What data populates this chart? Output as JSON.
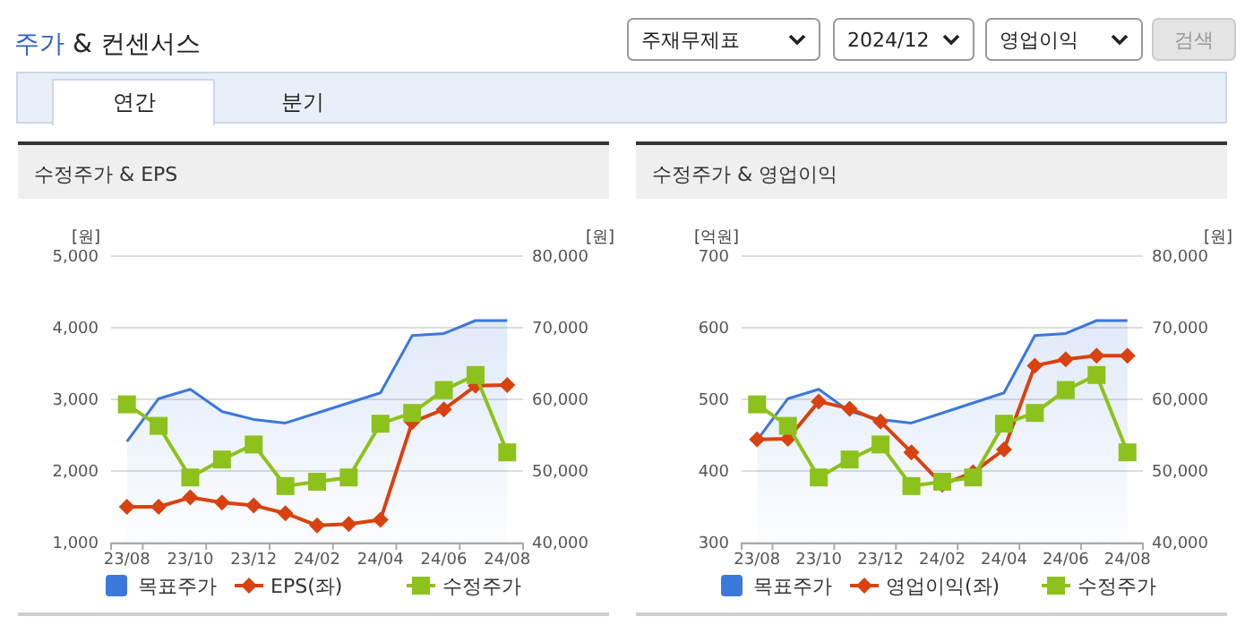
{
  "chart_data": [
    {
      "type": "other",
      "title": "주가 & 컨센서스",
      "annotations": [
        "주재무제표",
        "2024/12",
        "영업이익",
        "검색",
        "연간",
        "분기"
      ]
    },
    {
      "type": "line",
      "title": "수정주가 & EPS",
      "categories": [
        "23/08",
        null,
        "23/10",
        null,
        "23/12",
        null,
        "24/02",
        null,
        "24/04",
        null,
        "24/06",
        null,
        "24/08"
      ],
      "ylabel": "[원]",
      "y2label": "[원]",
      "ylim": [
        1000,
        5000
      ],
      "yticks": [
        {
          "value": 1000,
          "label": "1,000"
        },
        {
          "value": 2000,
          "label": "2,000"
        },
        {
          "value": 3000,
          "label": "3,000"
        },
        {
          "value": 4000,
          "label": "4,000"
        },
        {
          "value": 5000,
          "label": "5,000"
        }
      ],
      "y2lim": [
        40000,
        80000
      ],
      "y2ticks": [
        {
          "value": 40000,
          "label": "40,000"
        },
        {
          "value": 50000,
          "label": "50,000"
        },
        {
          "value": 60000,
          "label": "60,000"
        },
        {
          "value": 70000,
          "label": "70,000"
        },
        {
          "value": 80000,
          "label": "80,000"
        }
      ],
      "grid": "y",
      "legend": "bottom",
      "series": [
        {
          "name": "목표주가",
          "type": "area",
          "axis": "y2",
          "color": "#3b78dc",
          "values": [
            54100,
            60100,
            61400,
            58300,
            57200,
            56700,
            58100,
            59500,
            60900,
            68900,
            69200,
            71000,
            71000
          ]
        },
        {
          "name": "EPS(좌)",
          "type": "line",
          "axis": "y",
          "color": "#d9420f",
          "marker": "diamond",
          "values": [
            1500,
            1500,
            1630,
            1560,
            1520,
            1410,
            1240,
            1260,
            1320,
            2680,
            2860,
            3190,
            3200
          ]
        },
        {
          "name": "수정주가",
          "type": "line",
          "axis": "y2",
          "color": "#8cc21b",
          "marker": "square",
          "values": [
            59300,
            56300,
            49100,
            51600,
            53700,
            47900,
            48500,
            49100,
            56600,
            58100,
            61300,
            63400,
            52600
          ]
        }
      ]
    },
    {
      "type": "line",
      "title": "수정주가 & 영업이익",
      "categories": [
        "23/08",
        null,
        "23/10",
        null,
        "23/12",
        null,
        "24/02",
        null,
        "24/04",
        null,
        "24/06",
        null,
        "24/08"
      ],
      "ylabel": "[억원]",
      "y2label": "[원]",
      "ylim": [
        300,
        700
      ],
      "yticks": [
        300,
        400,
        500,
        600,
        700
      ],
      "y2lim": [
        40000,
        80000
      ],
      "y2ticks": [
        {
          "value": 40000,
          "label": "40,000"
        },
        {
          "value": 50000,
          "label": "50,000"
        },
        {
          "value": 60000,
          "label": "60,000"
        },
        {
          "value": 70000,
          "label": "70,000"
        },
        {
          "value": 80000,
          "label": "80,000"
        }
      ],
      "grid": "y",
      "legend": "bottom",
      "series": [
        {
          "name": "목표주가",
          "type": "area",
          "axis": "y2",
          "color": "#3b78dc",
          "values": [
            54300,
            60100,
            61400,
            58300,
            57200,
            56700,
            58100,
            59500,
            60900,
            68900,
            69200,
            71000,
            71000
          ]
        },
        {
          "name": "영업이익(좌)",
          "type": "line",
          "axis": "y",
          "color": "#d9420f",
          "marker": "diamond",
          "values": [
            444,
            445,
            497,
            487,
            469,
            426,
            381,
            398,
            430,
            547,
            556,
            561,
            561
          ]
        },
        {
          "name": "수정주가",
          "type": "line",
          "axis": "y2",
          "color": "#8cc21b",
          "marker": "square",
          "values": [
            59300,
            56300,
            49100,
            51600,
            53700,
            47900,
            48500,
            49100,
            56600,
            58100,
            61300,
            63400,
            52600
          ]
        }
      ]
    }
  ]
}
